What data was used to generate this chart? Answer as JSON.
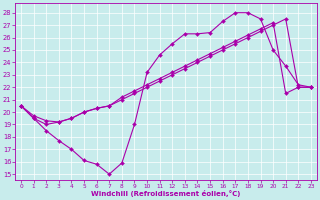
{
  "xlabel": "Windchill (Refroidissement éolien,°C)",
  "bg_color": "#c8ecec",
  "line_color": "#aa00aa",
  "marker": "D",
  "markersize": 2.0,
  "linewidth": 0.8,
  "xlim": [
    -0.5,
    23.5
  ],
  "ylim": [
    14.5,
    28.8
  ],
  "xticks": [
    0,
    1,
    2,
    3,
    4,
    5,
    6,
    7,
    8,
    9,
    10,
    11,
    12,
    13,
    14,
    15,
    16,
    17,
    18,
    19,
    20,
    21,
    22,
    23
  ],
  "yticks": [
    15,
    16,
    17,
    18,
    19,
    20,
    21,
    22,
    23,
    24,
    25,
    26,
    27,
    28
  ],
  "line1_x": [
    0,
    1,
    2,
    3,
    4,
    5,
    6,
    7,
    8,
    9,
    10,
    11,
    12,
    13,
    14,
    15,
    16,
    17,
    18,
    19,
    20,
    21,
    22,
    23
  ],
  "line1_y": [
    20.5,
    19.5,
    18.5,
    17.7,
    17.0,
    16.1,
    15.8,
    15.0,
    15.9,
    19.0,
    23.2,
    24.6,
    25.5,
    26.3,
    26.3,
    26.4,
    27.3,
    28.0,
    28.0,
    27.5,
    25.0,
    23.7,
    22.2,
    22.0
  ],
  "line2_x": [
    0,
    1,
    2,
    3,
    4,
    5,
    6,
    7,
    8,
    9,
    10,
    11,
    12,
    13,
    14,
    15,
    16,
    17,
    18,
    19,
    20,
    21,
    22,
    23
  ],
  "line2_y": [
    20.5,
    19.5,
    19.0,
    19.2,
    19.5,
    20.0,
    20.3,
    20.5,
    21.2,
    21.7,
    22.2,
    22.7,
    23.2,
    23.7,
    24.2,
    24.7,
    25.2,
    25.7,
    26.2,
    26.7,
    27.2,
    21.5,
    22.0,
    22.0
  ],
  "line3_x": [
    0,
    1,
    2,
    3,
    4,
    5,
    6,
    7,
    8,
    9,
    10,
    11,
    12,
    13,
    14,
    15,
    16,
    17,
    18,
    19,
    20,
    21,
    22,
    23
  ],
  "line3_y": [
    20.5,
    19.7,
    19.3,
    19.2,
    19.5,
    20.0,
    20.3,
    20.5,
    21.0,
    21.5,
    22.0,
    22.5,
    23.0,
    23.5,
    24.0,
    24.5,
    25.0,
    25.5,
    26.0,
    26.5,
    27.0,
    27.5,
    22.0,
    22.0
  ]
}
